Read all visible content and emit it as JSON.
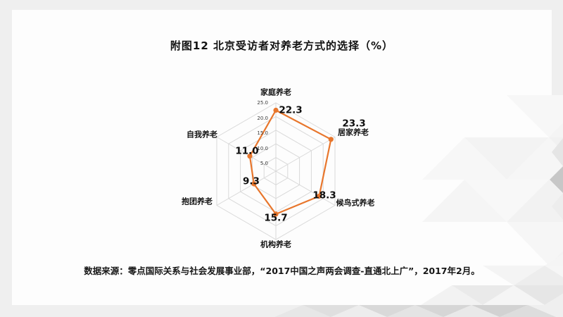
{
  "slide": {
    "title": "附图12 北京受访者对养老方式的选择（%）",
    "source_note": "数据来源：零点国际关系与社会发展事业部，“2017中国之声两会调查-直通北上广”，2017年2月。"
  },
  "colors": {
    "series": "#E8762C",
    "grid": "#D9D9D9",
    "page_background": "#EFEFEF",
    "slide_background": "#FDFDFD",
    "text": "#111111",
    "decor_dark_accent": "#C7C7C7"
  },
  "chart_data": {
    "type": "radar",
    "title": "附图12 北京受访者对养老方式的选择（%）",
    "categories": [
      "家庭养老",
      "居家养老",
      "候鸟式养老",
      "机构养老",
      "抱团养老",
      "自我养老"
    ],
    "values": [
      22.3,
      23.3,
      18.3,
      15.7,
      9.3,
      11.0
    ],
    "value_labels": [
      "22.3",
      "23.3",
      "18.3",
      "15.7",
      "9.3",
      "11.0"
    ],
    "axis_ticks": [
      "25.0",
      "20.0",
      "15.0",
      "10.0",
      "5.0"
    ],
    "scale": {
      "min": 0,
      "max": 25,
      "step": 5
    },
    "grid": true,
    "legend": "none",
    "series_name": "北京受访者对养老方式的选择"
  }
}
